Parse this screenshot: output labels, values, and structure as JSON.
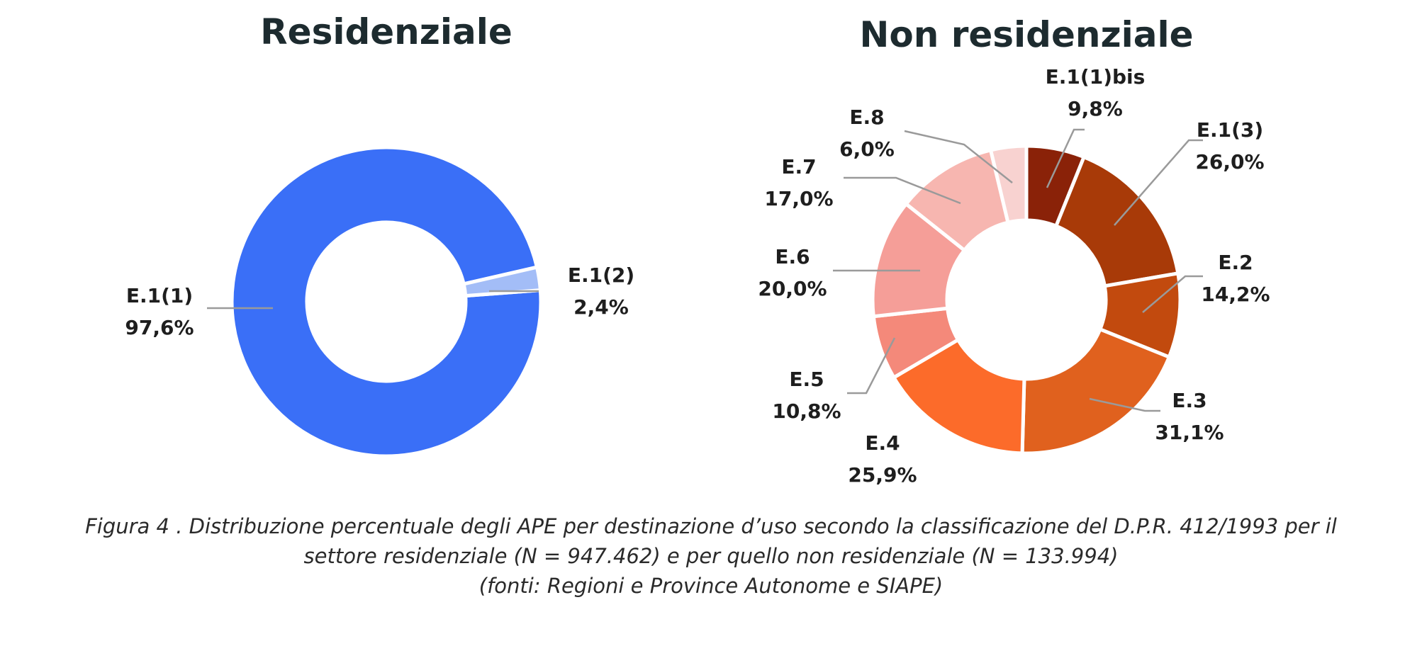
{
  "chart_data": [
    {
      "type": "pie",
      "title": "Residenziale",
      "slices": [
        {
          "label": "E.1(1)",
          "value": 97.6,
          "value_label": "97,6%",
          "color": "#3A6FF7"
        },
        {
          "label": "E.1(2)",
          "value": 2.4,
          "value_label": "2,4%",
          "color": "#A3BDF7"
        }
      ]
    },
    {
      "type": "pie",
      "title": "Non residenziale",
      "slices": [
        {
          "label": "E.1(1)bis",
          "value": 9.8,
          "value_label": "9,8%",
          "color": "#8A2208"
        },
        {
          "label": "E.1(3)",
          "value": 26.0,
          "value_label": "26,0%",
          "color": "#A83A08"
        },
        {
          "label": "E.2",
          "value": 14.2,
          "value_label": "14,2%",
          "color": "#C24A0E"
        },
        {
          "label": "E.3",
          "value": 31.1,
          "value_label": "31,1%",
          "color": "#E0611E"
        },
        {
          "label": "E.4",
          "value": 25.9,
          "value_label": "25,9%",
          "color": "#FC6B2A"
        },
        {
          "label": "E.5",
          "value": 10.8,
          "value_label": "10,8%",
          "color": "#F4897A"
        },
        {
          "label": "E.6",
          "value": 20.0,
          "value_label": "20,0%",
          "color": "#F59E98"
        },
        {
          "label": "E.7",
          "value": 17.0,
          "value_label": "17,0%",
          "color": "#F7B6B0"
        },
        {
          "label": "E.8",
          "value": 6.0,
          "value_label": "6,0%",
          "color": "#F8D2D0"
        }
      ]
    }
  ],
  "caption": {
    "line1": "Figura 4  . Distribuzione percentuale degli APE per destinazione d’uso secondo la classificazione del D.P.R. 412/1993 per il",
    "line2": "settore residenziale (N = 947.462) e per quello non residenziale (N = 133.994)",
    "line3": "(fonti: Regioni e Province Autonome e SIAPE)"
  }
}
